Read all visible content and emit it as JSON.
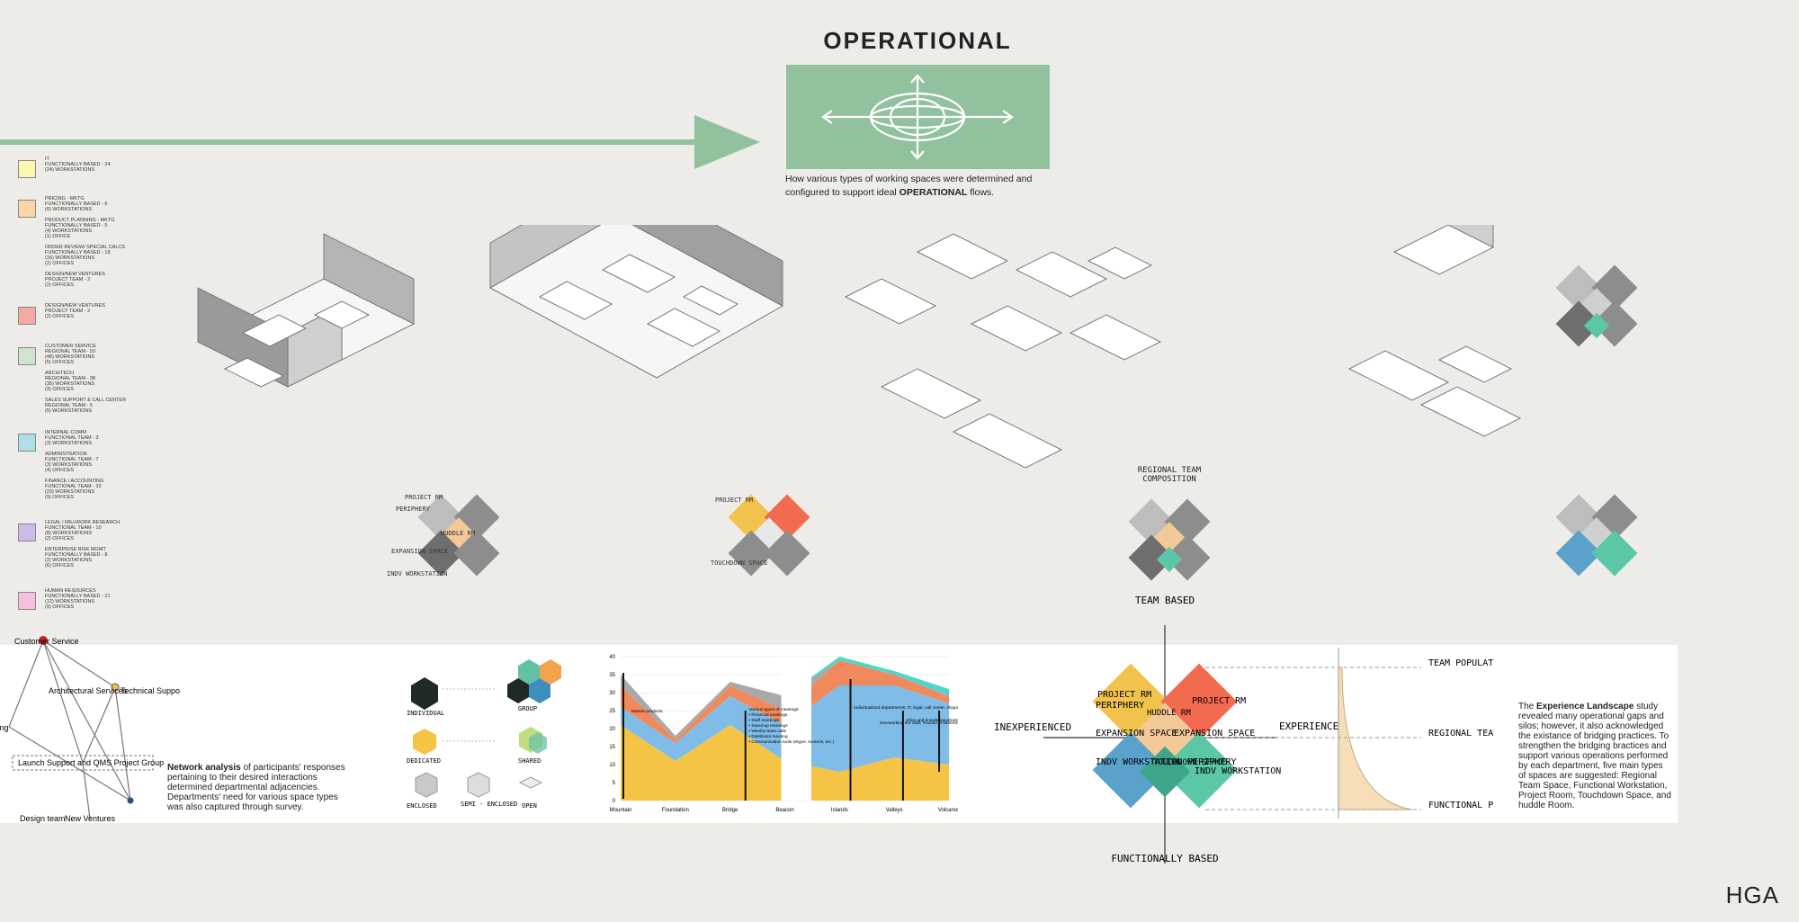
{
  "heading": "OPERATIONAL",
  "caption_lines": [
    "How various types of working spaces were determined and",
    "configured to support ideal"
  ],
  "caption_bold": "OPERATIONAL",
  "caption_tail": "flows.",
  "legend": [
    {
      "color": "#fcf6b0",
      "text": "IT\nFUNCTIONALLY BASED - 24\n(24) WORKSTATIONS"
    },
    {
      "color": "#f8d6a8",
      "text": "PRICING - MKTG\nFUNCTIONALLY BASED - 6\n(6) WORKSTATIONS\n\nPRODUCT PLANNING - MKTG\nFUNCTIONALLY BASED - 5\n(4) WORKSTATIONS\n(1) OFFICE\n\nORDER REVIEW/ SPECIAL CALCS\nFUNCTIONALLY BASED - 18\n(16) WORKSTATIONS\n(2) OFFICES\n\nDESIGN/NEW VENTURES\nPROJECT TEAM - 2\n(2) OFFICES"
    },
    {
      "color": "#f2aba0",
      "text": "DESIGN/NEW VENTURES\nPROJECT TEAM - 2\n(2) OFFICES"
    },
    {
      "color": "#cfe3cf",
      "text": "CUSTOMER SERVICE\nREGIONAL TEAM - 53\n(48) WORKSTATIONS\n(5) OFFICES\n\nARCH/TECH\nREGIONAL TEAM - 38\n(35) WORKSTATIONS\n(3) OFFICES\n\nSALES SUPPORT & CALL CENTER\nREGIONAL TEAM - 5\n(5) WORKSTATIONS"
    },
    {
      "color": "#ade0e6",
      "text": "INTERNAL COMM\nFUNCTIONAL TEAM - 3\n(3) WORKSTATIONS\n\nADMINISTRATION\nFUNCTIONAL TEAM - 7\n(3) WORKSTATIONS\n(4) OFFICES\n\nFINANCE / ACCOUNTING\nFUNCTIONAL TEAM - 32\n(23) WORKSTATIONS\n(9) OFFICES"
    },
    {
      "color": "#cdbbe8",
      "text": "LEGAL / MILLWORK RESEARCH\nFUNCTIONAL TEAM - 10\n(8) WORKSTATIONS\n(2) OFFICES\n\nENTERPRISE RISK MGMT\nFUNCTIONALLY BASED - 8\n(2) WORKSTATIONS\n(6) OFFICES"
    },
    {
      "color": "#f6c0dc",
      "text": "HUMAN RESOURCES\nFUNCTIONALLY BASED - 21\n(12) WORKSTATIONS\n(9) OFFICES"
    }
  ],
  "iso_labels": {
    "project_rm": "PROJECT RM",
    "periphery": "PERIPHERY",
    "huddle_rm": "HUDDLE RM",
    "expansion_space": "EXPANSION SPACE",
    "indv_workstation": "INDV WORKSTATION",
    "touchdown_space": "TOUCHDOWN SPACE"
  },
  "regional_label": "REGIONAL TEAM COMPOSITION",
  "network": {
    "nodes": [
      "Customer Service",
      "Architectural Services",
      "Technical Support",
      "Marketing",
      "Launch Support and QMS Project Group",
      "Design team",
      "New Ventures"
    ],
    "description_bold": "Network analysis",
    "description": "of participants' responses pertaining to their desired interactions determined departmental adjacencies. Departments' need for various space types was also captured through survey."
  },
  "types": {
    "individual": "INDIVIDUAL",
    "group": "GROUP",
    "dedicated": "DEDICATED",
    "shared": "SHARED",
    "enclosed": "ENCLOSED",
    "semi_enclosed": "SEMI - ENCLOSED",
    "open": "OPEN"
  },
  "chart_data": {
    "type": "area",
    "categories": [
      "Mountain",
      "Foundation",
      "Bridge",
      "Beacon",
      "Islands",
      "Valleys",
      "Volcanos"
    ],
    "ylim": [
      0,
      40
    ],
    "yticks": [
      0,
      5,
      10,
      15,
      20,
      25,
      30,
      35,
      40
    ],
    "series": [
      {
        "color": "#f6c445",
        "values": [
          21,
          11,
          21,
          11,
          8,
          12,
          10
        ]
      },
      {
        "color": "#7fbde8",
        "values": [
          5,
          5,
          8,
          10,
          24,
          20,
          17
        ]
      },
      {
        "color": "#f08a5d",
        "values": [
          6,
          1,
          3,
          4,
          7,
          3,
          2
        ]
      },
      {
        "color": "#a9a9a9",
        "values": [
          3,
          1,
          1,
          4,
          0,
          0,
          0
        ]
      },
      {
        "color": "#4fd6c8",
        "values": [
          0,
          0,
          0,
          0,
          1,
          1,
          2
        ]
      }
    ],
    "annotations": [
      "Mature products",
      "Various types of meetings:\n• Financial meetings\n• Staff meetings\n• Stand-up meetings\n• Weekly team calls\n• Distributor meeting\n• Communication tools (skype, screens, etc.)",
      "Individualized departments: IT, legal, call center, shipping, outside services, accounting/finance, remote employees",
      "Silos and knowledge-sharing challenges + Generational gaps",
      "Overworking the staff; Tension in different ways of working; Aging workforce; Inability to attract talent to Warroad"
    ]
  },
  "landscape": {
    "team_based": "TEAM BASED",
    "functionally_based": "FUNCTIONALLY BASED",
    "inexperienced": "INEXPERIENCED",
    "experienced": "EXPERIENCED",
    "project_rm": "PROJECT RM",
    "periphery": "PERIPHERY",
    "huddle_rm": "HUDDLE RM",
    "expansion_space": "EXPANSION SPACE",
    "indv_workstation": "INDV WORKSTATION",
    "touchdown_space": "TOUCHDOWN SPACE",
    "indv_workstation_periphery": "INDV WORKSTATION PERIPHERY"
  },
  "population": [
    "TEAM POPULATION",
    "REGIONAL TEAM POPULATION",
    "FUNCTIONAL POPULATION"
  ],
  "study": {
    "pre": "The",
    "bold": "Experience Landscape",
    "text": "study revealed many operational gaps and silos; however, it also acknowledged the existance of bridging practices. To strengthen the bridging bractices and support various operations performed by each department, five main types of spaces are suggested: Regional Team Space, Functional Workstation, Project Room, Touchdown Space, and huddle Room."
  },
  "brand": "HGA",
  "colors": {
    "green": "#92c19d",
    "yellow": "#f2c34c",
    "orange": "#f26a4f",
    "peach": "#f4c99a",
    "blue": "#5aa1cc",
    "teal": "#5cc7a6",
    "gray": "#8b8b8b",
    "darkgray": "#6e6e6e"
  }
}
